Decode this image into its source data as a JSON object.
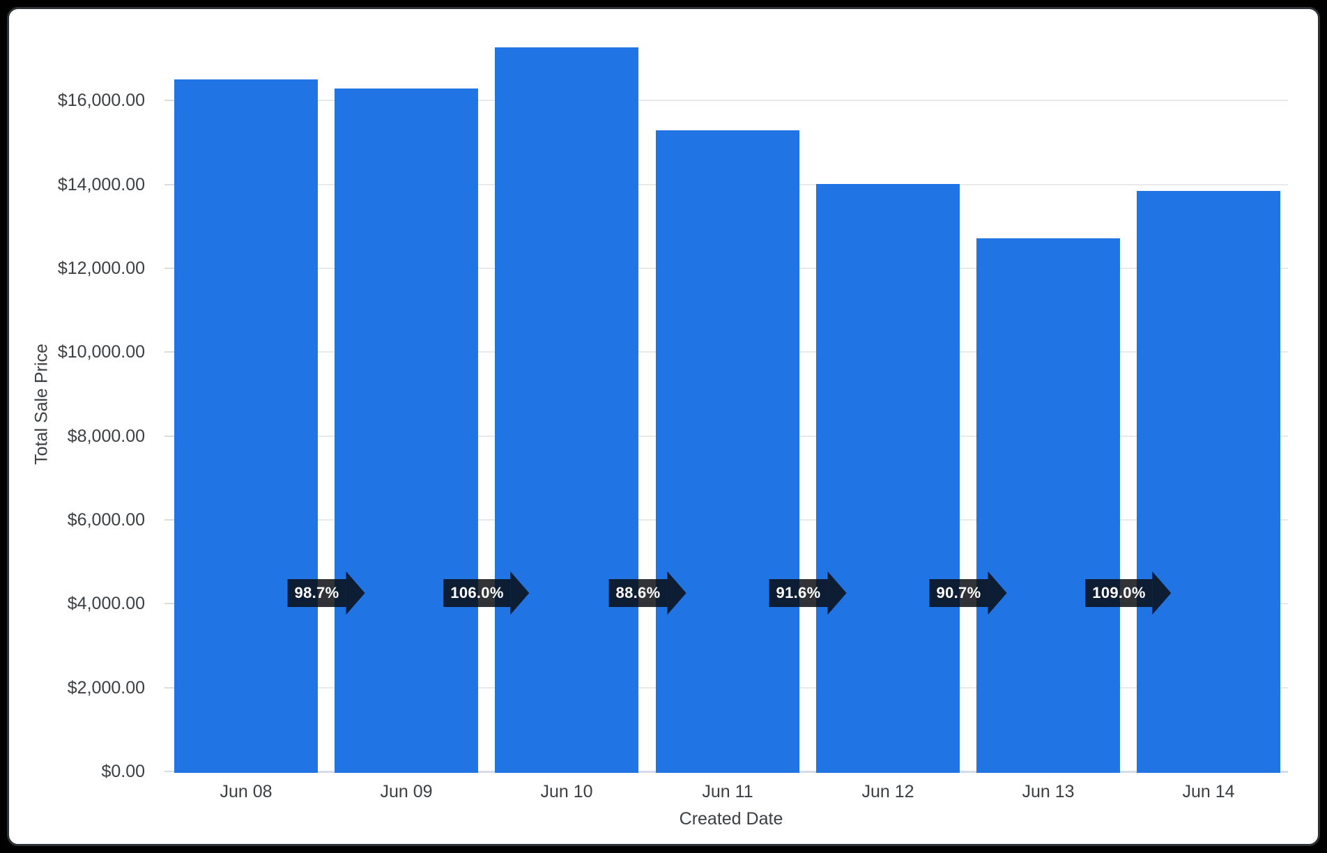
{
  "frame": {
    "background_color": "#010101",
    "card_color": "#ffffff",
    "card_border_color": "#2e3336"
  },
  "chart_data": {
    "type": "bar",
    "title": "",
    "xlabel": "Created Date",
    "ylabel": "Total Sale Price",
    "categories": [
      "Jun 08",
      "Jun 09",
      "Jun 10",
      "Jun 11",
      "Jun 12",
      "Jun 13",
      "Jun 14"
    ],
    "values": [
      16500,
      16290,
      17260,
      15290,
      14010,
      12710,
      13850
    ],
    "percent_change_labels": [
      "98.7%",
      "106.0%",
      "88.6%",
      "91.6%",
      "90.7%",
      "109.0%"
    ],
    "y_ticks": [
      "$0.00",
      "$2,000.00",
      "$4,000.00",
      "$6,000.00",
      "$8,000.00",
      "$10,000.00",
      "$12,000.00",
      "$14,000.00",
      "$16,000.00"
    ],
    "y_tick_values": [
      0,
      2000,
      4000,
      6000,
      8000,
      10000,
      12000,
      14000,
      16000
    ],
    "ylim": [
      0,
      18000
    ],
    "grid": true,
    "legend": "none",
    "colors": {
      "bar": "#2174e3",
      "arrow_fill": "rgba(10,12,17,0.84)",
      "arrow_text": "#ffffff",
      "axis_text": "#3c4043",
      "gridline": "#e9e9e9",
      "axis_line": "#d6dbe5"
    }
  }
}
